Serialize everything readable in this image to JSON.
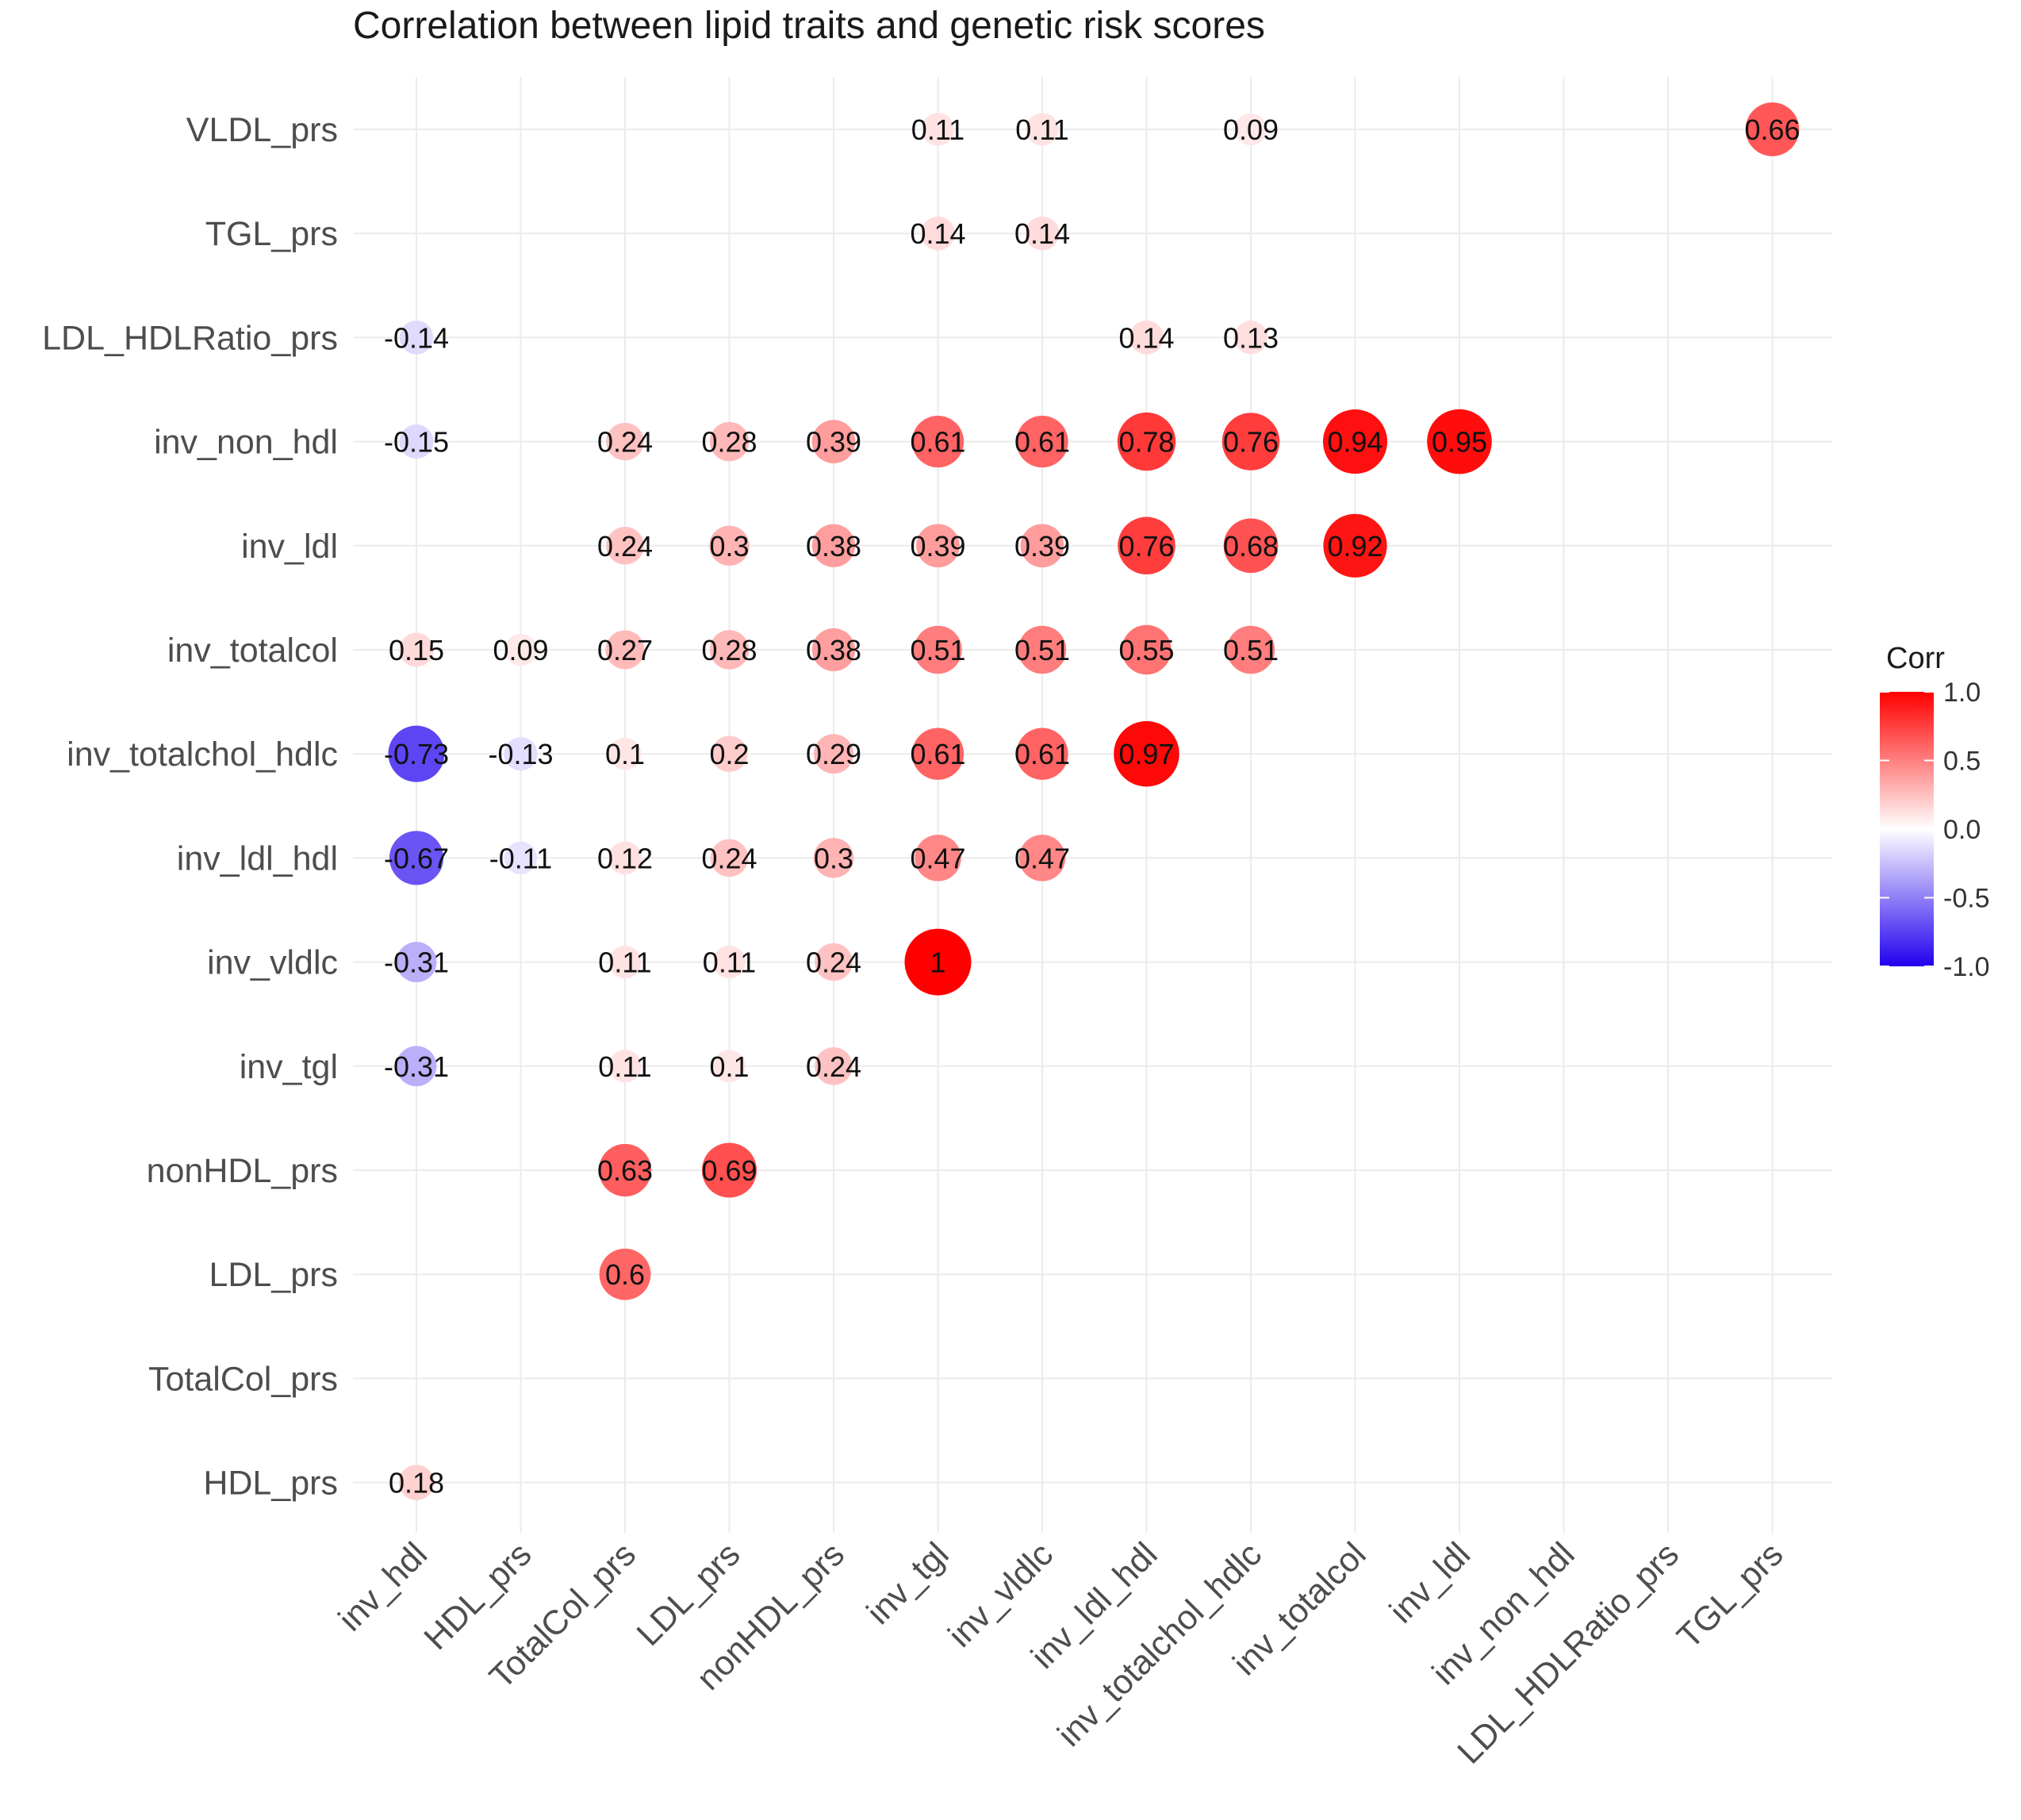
{
  "chart_data": {
    "type": "heatmap",
    "title": "Correlation between lipid traits and genetic risk scores",
    "xlabel": "",
    "ylabel": "",
    "x_categories": [
      "inv_hdl",
      "HDL_prs",
      "TotalCol_prs",
      "LDL_prs",
      "nonHDL_prs",
      "inv_tgl",
      "inv_vldlc",
      "inv_ldl_hdl",
      "inv_totalchol_hdlc",
      "inv_totalcol",
      "inv_ldl",
      "inv_non_hdl",
      "LDL_HDLRatio_prs",
      "TGL_prs"
    ],
    "y_categories": [
      "VLDL_prs",
      "TGL_prs",
      "LDL_HDLRatio_prs",
      "inv_non_hdl",
      "inv_ldl",
      "inv_totalcol",
      "inv_totalchol_hdlc",
      "inv_ldl_hdl",
      "inv_vldlc",
      "inv_tgl",
      "nonHDL_prs",
      "LDL_prs",
      "TotalCol_prs",
      "HDL_prs"
    ],
    "cells": [
      {
        "x": "inv_tgl",
        "y": "VLDL_prs",
        "value": 0.11,
        "label": "0.11"
      },
      {
        "x": "inv_vldlc",
        "y": "VLDL_prs",
        "value": 0.11,
        "label": "0.11"
      },
      {
        "x": "inv_totalchol_hdlc",
        "y": "VLDL_prs",
        "value": 0.09,
        "label": "0.09"
      },
      {
        "x": "TGL_prs",
        "y": "VLDL_prs",
        "value": 0.66,
        "label": "0.66"
      },
      {
        "x": "inv_tgl",
        "y": "TGL_prs",
        "value": 0.14,
        "label": "0.14"
      },
      {
        "x": "inv_vldlc",
        "y": "TGL_prs",
        "value": 0.14,
        "label": "0.14"
      },
      {
        "x": "inv_hdl",
        "y": "LDL_HDLRatio_prs",
        "value": -0.14,
        "label": "-0.14"
      },
      {
        "x": "inv_ldl_hdl",
        "y": "LDL_HDLRatio_prs",
        "value": 0.14,
        "label": "0.14"
      },
      {
        "x": "inv_totalchol_hdlc",
        "y": "LDL_HDLRatio_prs",
        "value": 0.13,
        "label": "0.13"
      },
      {
        "x": "inv_hdl",
        "y": "inv_non_hdl",
        "value": -0.15,
        "label": "-0.15"
      },
      {
        "x": "TotalCol_prs",
        "y": "inv_non_hdl",
        "value": 0.24,
        "label": "0.24"
      },
      {
        "x": "LDL_prs",
        "y": "inv_non_hdl",
        "value": 0.28,
        "label": "0.28"
      },
      {
        "x": "nonHDL_prs",
        "y": "inv_non_hdl",
        "value": 0.39,
        "label": "0.39"
      },
      {
        "x": "inv_tgl",
        "y": "inv_non_hdl",
        "value": 0.61,
        "label": "0.61"
      },
      {
        "x": "inv_vldlc",
        "y": "inv_non_hdl",
        "value": 0.61,
        "label": "0.61"
      },
      {
        "x": "inv_ldl_hdl",
        "y": "inv_non_hdl",
        "value": 0.78,
        "label": "0.78"
      },
      {
        "x": "inv_totalchol_hdlc",
        "y": "inv_non_hdl",
        "value": 0.76,
        "label": "0.76"
      },
      {
        "x": "inv_totalcol",
        "y": "inv_non_hdl",
        "value": 0.94,
        "label": "0.94"
      },
      {
        "x": "inv_ldl",
        "y": "inv_non_hdl",
        "value": 0.95,
        "label": "0.95"
      },
      {
        "x": "TotalCol_prs",
        "y": "inv_ldl",
        "value": 0.24,
        "label": "0.24"
      },
      {
        "x": "LDL_prs",
        "y": "inv_ldl",
        "value": 0.3,
        "label": "0.3"
      },
      {
        "x": "nonHDL_prs",
        "y": "inv_ldl",
        "value": 0.38,
        "label": "0.38"
      },
      {
        "x": "inv_tgl",
        "y": "inv_ldl",
        "value": 0.39,
        "label": "0.39"
      },
      {
        "x": "inv_vldlc",
        "y": "inv_ldl",
        "value": 0.39,
        "label": "0.39"
      },
      {
        "x": "inv_ldl_hdl",
        "y": "inv_ldl",
        "value": 0.76,
        "label": "0.76"
      },
      {
        "x": "inv_totalchol_hdlc",
        "y": "inv_ldl",
        "value": 0.68,
        "label": "0.68"
      },
      {
        "x": "inv_totalcol",
        "y": "inv_ldl",
        "value": 0.92,
        "label": "0.92"
      },
      {
        "x": "inv_hdl",
        "y": "inv_totalcol",
        "value": 0.15,
        "label": "0.15"
      },
      {
        "x": "HDL_prs",
        "y": "inv_totalcol",
        "value": 0.09,
        "label": "0.09"
      },
      {
        "x": "TotalCol_prs",
        "y": "inv_totalcol",
        "value": 0.27,
        "label": "0.27"
      },
      {
        "x": "LDL_prs",
        "y": "inv_totalcol",
        "value": 0.28,
        "label": "0.28"
      },
      {
        "x": "nonHDL_prs",
        "y": "inv_totalcol",
        "value": 0.38,
        "label": "0.38"
      },
      {
        "x": "inv_tgl",
        "y": "inv_totalcol",
        "value": 0.51,
        "label": "0.51"
      },
      {
        "x": "inv_vldlc",
        "y": "inv_totalcol",
        "value": 0.51,
        "label": "0.51"
      },
      {
        "x": "inv_ldl_hdl",
        "y": "inv_totalcol",
        "value": 0.55,
        "label": "0.55"
      },
      {
        "x": "inv_totalchol_hdlc",
        "y": "inv_totalcol",
        "value": 0.51,
        "label": "0.51"
      },
      {
        "x": "inv_hdl",
        "y": "inv_totalchol_hdlc",
        "value": -0.73,
        "label": "-0.73"
      },
      {
        "x": "HDL_prs",
        "y": "inv_totalchol_hdlc",
        "value": -0.13,
        "label": "-0.13"
      },
      {
        "x": "TotalCol_prs",
        "y": "inv_totalchol_hdlc",
        "value": 0.1,
        "label": "0.1"
      },
      {
        "x": "LDL_prs",
        "y": "inv_totalchol_hdlc",
        "value": 0.2,
        "label": "0.2"
      },
      {
        "x": "nonHDL_prs",
        "y": "inv_totalchol_hdlc",
        "value": 0.29,
        "label": "0.29"
      },
      {
        "x": "inv_tgl",
        "y": "inv_totalchol_hdlc",
        "value": 0.61,
        "label": "0.61"
      },
      {
        "x": "inv_vldlc",
        "y": "inv_totalchol_hdlc",
        "value": 0.61,
        "label": "0.61"
      },
      {
        "x": "inv_ldl_hdl",
        "y": "inv_totalchol_hdlc",
        "value": 0.97,
        "label": "0.97"
      },
      {
        "x": "inv_hdl",
        "y": "inv_ldl_hdl",
        "value": -0.67,
        "label": "-0.67"
      },
      {
        "x": "HDL_prs",
        "y": "inv_ldl_hdl",
        "value": -0.11,
        "label": "-0.11"
      },
      {
        "x": "TotalCol_prs",
        "y": "inv_ldl_hdl",
        "value": 0.12,
        "label": "0.12"
      },
      {
        "x": "LDL_prs",
        "y": "inv_ldl_hdl",
        "value": 0.24,
        "label": "0.24"
      },
      {
        "x": "nonHDL_prs",
        "y": "inv_ldl_hdl",
        "value": 0.3,
        "label": "0.3"
      },
      {
        "x": "inv_tgl",
        "y": "inv_ldl_hdl",
        "value": 0.47,
        "label": "0.47"
      },
      {
        "x": "inv_vldlc",
        "y": "inv_ldl_hdl",
        "value": 0.47,
        "label": "0.47"
      },
      {
        "x": "inv_hdl",
        "y": "inv_vldlc",
        "value": -0.31,
        "label": "-0.31"
      },
      {
        "x": "TotalCol_prs",
        "y": "inv_vldlc",
        "value": 0.11,
        "label": "0.11"
      },
      {
        "x": "LDL_prs",
        "y": "inv_vldlc",
        "value": 0.11,
        "label": "0.11"
      },
      {
        "x": "nonHDL_prs",
        "y": "inv_vldlc",
        "value": 0.24,
        "label": "0.24"
      },
      {
        "x": "inv_tgl",
        "y": "inv_vldlc",
        "value": 1,
        "label": "1"
      },
      {
        "x": "inv_hdl",
        "y": "inv_tgl",
        "value": -0.31,
        "label": "-0.31"
      },
      {
        "x": "TotalCol_prs",
        "y": "inv_tgl",
        "value": 0.11,
        "label": "0.11"
      },
      {
        "x": "LDL_prs",
        "y": "inv_tgl",
        "value": 0.1,
        "label": "0.1"
      },
      {
        "x": "nonHDL_prs",
        "y": "inv_tgl",
        "value": 0.24,
        "label": "0.24"
      },
      {
        "x": "TotalCol_prs",
        "y": "nonHDL_prs",
        "value": 0.63,
        "label": "0.63"
      },
      {
        "x": "LDL_prs",
        "y": "nonHDL_prs",
        "value": 0.69,
        "label": "0.69"
      },
      {
        "x": "TotalCol_prs",
        "y": "LDL_prs",
        "value": 0.6,
        "label": "0.6"
      },
      {
        "x": "inv_hdl",
        "y": "HDL_prs",
        "value": 0.18,
        "label": "0.18"
      }
    ],
    "legend": {
      "title": "Corr",
      "ticks": [
        "1.0",
        "0.5",
        "0.0",
        "-0.5",
        "-1.0"
      ],
      "range": [
        -1,
        1
      ],
      "placement": "right"
    },
    "colors": {
      "low": "#2200ee",
      "mid": "#ffffff",
      "high": "#ff0000",
      "grid": "#ebebeb"
    },
    "grid": true
  }
}
